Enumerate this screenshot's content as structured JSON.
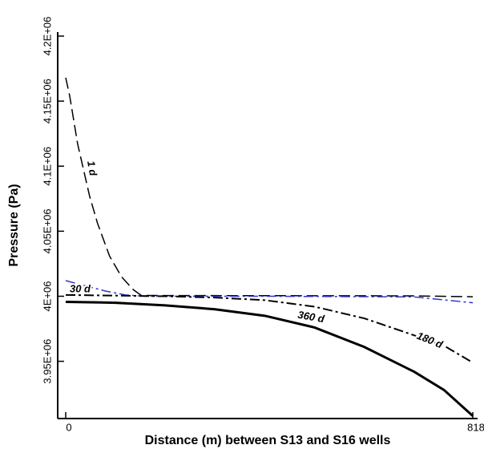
{
  "chart_data": {
    "type": "line",
    "x_label": "Distance (m) between S13 and S16 wells",
    "y_label": "Pressure (Pa)",
    "xlim": [
      0,
      818
    ],
    "xticks": [
      0,
      818
    ],
    "ylim": [
      3906000,
      4200000
    ],
    "yticks": [
      {
        "value": 3950000,
        "label": "3.95E+06"
      },
      {
        "value": 4000000,
        "label": "4E+06"
      },
      {
        "value": 4050000,
        "label": "4.05E+06"
      },
      {
        "value": 4100000,
        "label": "4.1E+06"
      },
      {
        "value": 4150000,
        "label": "4.15E+06"
      },
      {
        "value": 4200000,
        "label": "4.2E+06"
      }
    ],
    "series": [
      {
        "name": "1 d",
        "color": "#000000",
        "dash": "dashed",
        "width": 1.5,
        "x": [
          0,
          8,
          24,
          48,
          64,
          88,
          112,
          136,
          152,
          300,
          500,
          700,
          818
        ],
        "values": [
          4168000,
          4154000,
          4117000,
          4077000,
          4056000,
          4031000,
          4015000,
          4005000,
          4000600,
          4000500,
          4000400,
          4000300,
          3999600
        ]
      },
      {
        "name": "30 d",
        "color": "#3333cc",
        "dash": "dashdot",
        "width": 1.5,
        "x": [
          0,
          40,
          80,
          120,
          160,
          400,
          700,
          818
        ],
        "values": [
          4012000,
          4008000,
          4004000,
          4001000,
          4000000,
          4000000,
          3999500,
          3995000
        ]
      },
      {
        "name": "180 d",
        "color": "#000000",
        "dash": "dashdot",
        "width": 2,
        "x": [
          0,
          200,
          300,
          400,
          500,
          600,
          700,
          760,
          818
        ],
        "values": [
          4001000,
          4000000,
          3999000,
          3997000,
          3992000,
          3983000,
          3970000,
          3962000,
          3949000
        ]
      },
      {
        "name": "360 d",
        "color": "#000000",
        "dash": "solid",
        "width": 3,
        "x": [
          0,
          100,
          200,
          300,
          400,
          500,
          600,
          700,
          760,
          818
        ],
        "values": [
          3995700,
          3995000,
          3993000,
          3990000,
          3985000,
          3976000,
          3961000,
          3942000,
          3928000,
          3908000
        ]
      }
    ]
  }
}
